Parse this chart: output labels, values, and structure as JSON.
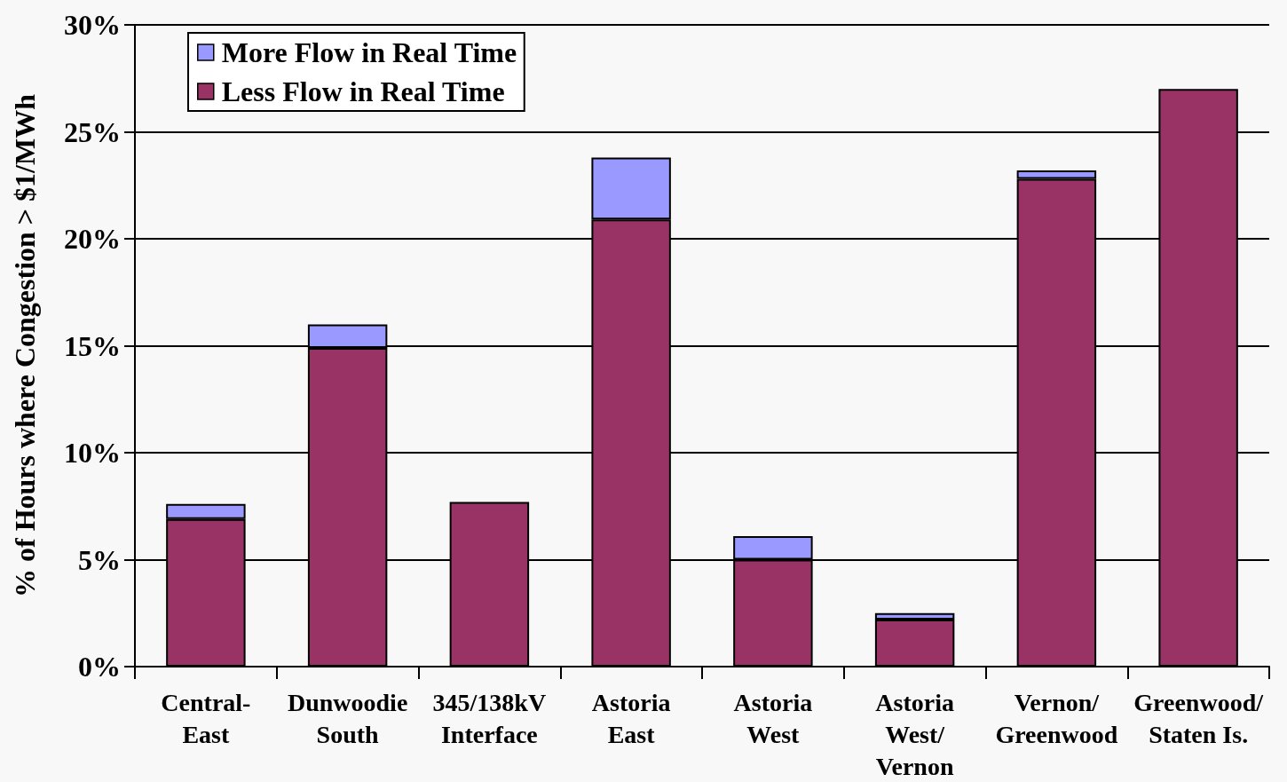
{
  "chart_data": {
    "type": "bar",
    "stacked": true,
    "ylabel": "% of Hours where Congestion > $1/MWh",
    "categories": [
      "Central-East",
      "Dunwoodie South",
      "345/138kV Interface",
      "Astoria East",
      "Astoria West",
      "Astoria West/ Vernon",
      "Vernon/ Greenwood",
      "Greenwood/ Staten Is."
    ],
    "series": [
      {
        "name": "Less Flow in Real Time",
        "color": "#993366",
        "values": [
          6.9,
          14.9,
          7.7,
          20.9,
          5.0,
          2.2,
          22.8,
          27.0
        ]
      },
      {
        "name": "More Flow in Real Time",
        "color": "#9999ff",
        "values": [
          0.7,
          1.1,
          0,
          2.9,
          1.1,
          0.3,
          0.4,
          0
        ]
      }
    ],
    "ylim": [
      0,
      30
    ],
    "yticks": [
      {
        "value": 0,
        "label": "0%"
      },
      {
        "value": 5,
        "label": "5%"
      },
      {
        "value": 10,
        "label": "10%"
      },
      {
        "value": 15,
        "label": "15%"
      },
      {
        "value": 20,
        "label": "20%"
      },
      {
        "value": 25,
        "label": "25%"
      },
      {
        "value": 30,
        "label": "30%"
      }
    ],
    "grid": "y",
    "legend": "top left"
  }
}
